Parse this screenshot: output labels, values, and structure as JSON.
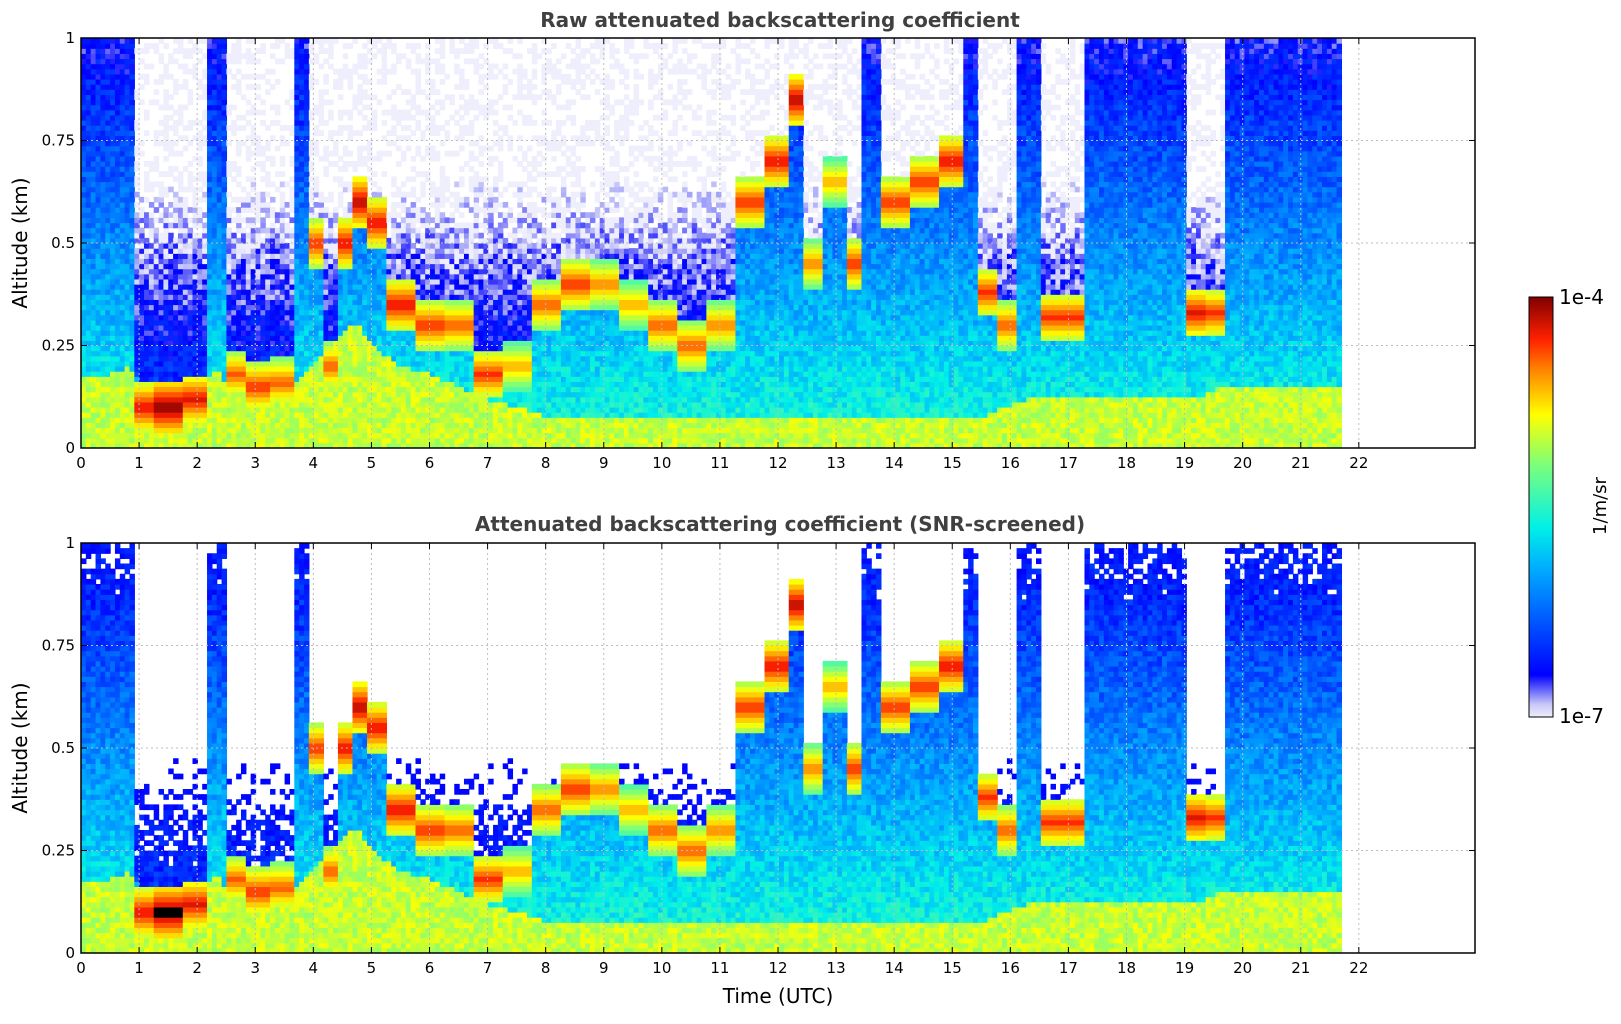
{
  "chart_data": [
    {
      "type": "heatmap",
      "title": "Raw attenuated backscattering coefficient",
      "xlabel": "",
      "ylabel": "Altitude (km)",
      "xlim": [
        0,
        24
      ],
      "ylim": [
        0,
        1
      ],
      "xticks": [
        "0",
        "1",
        "2",
        "3",
        "4",
        "5",
        "6",
        "7",
        "8",
        "9",
        "10",
        "11",
        "12",
        "13",
        "14",
        "15",
        "16",
        "17",
        "18",
        "19",
        "20",
        "21",
        "22"
      ],
      "yticks": [
        "0",
        "0.25",
        "0.5",
        "0.75",
        "1"
      ],
      "grid": true,
      "data_end_hour": 21.7,
      "screened": false,
      "log10_scale": [
        -7,
        -4
      ]
    },
    {
      "type": "heatmap",
      "title": "Attenuated backscattering coefficient (SNR-screened)",
      "xlabel": "Time (UTC)",
      "ylabel": "Altitude (km)",
      "xlim": [
        0,
        24
      ],
      "ylim": [
        0,
        1
      ],
      "xticks": [
        "0",
        "1",
        "2",
        "3",
        "4",
        "5",
        "6",
        "7",
        "8",
        "9",
        "10",
        "11",
        "12",
        "13",
        "14",
        "15",
        "16",
        "17",
        "18",
        "19",
        "20",
        "21",
        "22"
      ],
      "yticks": [
        "0",
        "0.25",
        "0.5",
        "0.75",
        "1"
      ],
      "grid": true,
      "data_end_hour": 21.7,
      "screened": true,
      "log10_scale": [
        -7,
        -4
      ]
    }
  ],
  "colorbar": {
    "label": "1/m/sr",
    "max_label": "1e-4",
    "min_label": "1e-7",
    "colormap": "jet"
  },
  "profile_hours": [
    0,
    0.5,
    0.85,
    1.0,
    1.5,
    2.0,
    2.4,
    2.6,
    3.0,
    3.5,
    3.8,
    4.0,
    4.3,
    4.6,
    4.8,
    5.0,
    5.5,
    6.0,
    6.5,
    7.0,
    7.5,
    8.0,
    8.5,
    9.0,
    9.5,
    10.0,
    10.5,
    11.0,
    11.5,
    12.0,
    12.3,
    12.6,
    13.0,
    13.3,
    13.6,
    14.0,
    14.5,
    15.0,
    15.3,
    15.6,
    15.9,
    16.3,
    16.7,
    17.0,
    17.5,
    18.0,
    18.5,
    18.8,
    19.2,
    19.6,
    19.8,
    20.3,
    21.0,
    21.7
  ],
  "boundary_layer_top_km": [
    0.18,
    0.18,
    0.2,
    0.16,
    0.15,
    0.17,
    0.19,
    0.12,
    0.14,
    0.15,
    0.17,
    0.2,
    0.25,
    0.3,
    0.3,
    0.25,
    0.2,
    0.18,
    0.15,
    0.12,
    0.1,
    0.08,
    0.08,
    0.08,
    0.07,
    0.07,
    0.07,
    0.07,
    0.08,
    0.08,
    0.08,
    0.08,
    0.08,
    0.08,
    0.08,
    0.08,
    0.08,
    0.08,
    0.08,
    0.08,
    0.1,
    0.12,
    0.12,
    0.12,
    0.12,
    0.12,
    0.12,
    0.12,
    0.12,
    0.15,
    0.15,
    0.15,
    0.15,
    0.15
  ],
  "cloud_layer_center_km": [
    0,
    0,
    0,
    0.1,
    0.1,
    0.12,
    0,
    0.18,
    0.15,
    0.16,
    0,
    0.5,
    0.2,
    0.5,
    0.6,
    0.55,
    0.35,
    0.3,
    0.3,
    0.18,
    0.2,
    0.35,
    0.4,
    0.4,
    0.35,
    0.3,
    0.25,
    0.3,
    0.6,
    0.7,
    0.85,
    0.45,
    0.65,
    0.45,
    0,
    0.6,
    0.65,
    0.7,
    0,
    0.38,
    0.3,
    0,
    0.32,
    0.32,
    0,
    0,
    0,
    0,
    0.33,
    0.33,
    0,
    0,
    0,
    0
  ],
  "cloud_signal_log10": [
    -6,
    -6,
    -6,
    -4.2,
    -4.0,
    -4.2,
    -6,
    -4.4,
    -4.3,
    -4.4,
    -6,
    -4.3,
    -4.4,
    -4.2,
    -4.1,
    -4.2,
    -4.2,
    -4.3,
    -4.4,
    -4.3,
    -4.6,
    -4.4,
    -4.3,
    -4.5,
    -4.6,
    -4.4,
    -4.4,
    -4.5,
    -4.3,
    -4.2,
    -4.1,
    -4.5,
    -4.6,
    -4.3,
    -6,
    -4.3,
    -4.3,
    -4.2,
    -6,
    -4.3,
    -4.4,
    -6,
    -4.3,
    -4.3,
    -6,
    -6,
    -6,
    -6,
    -4.2,
    -4.3,
    -6,
    -6,
    -6,
    -6
  ]
}
